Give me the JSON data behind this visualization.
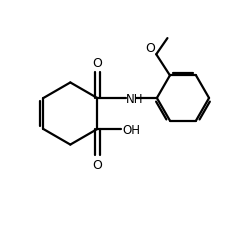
{
  "background_color": "#ffffff",
  "line_color": "#000000",
  "line_width": 1.6,
  "fig_width": 2.5,
  "fig_height": 2.32,
  "dpi": 100,
  "xlim": [
    0,
    10
  ],
  "ylim": [
    0,
    9.28
  ]
}
